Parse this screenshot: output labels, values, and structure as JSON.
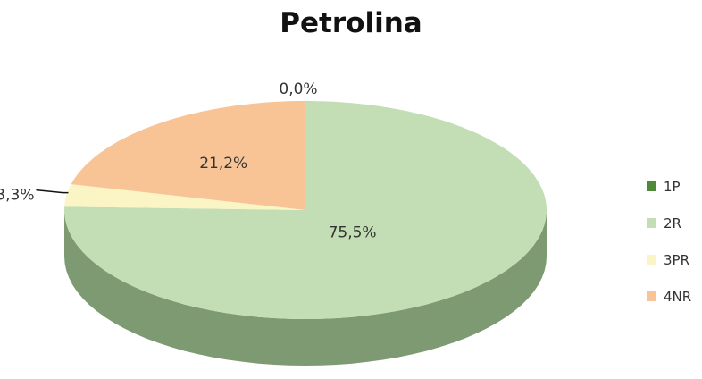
{
  "chart_data": {
    "type": "pie",
    "title": "Petrolina",
    "categories": [
      "1P",
      "2R",
      "3PR",
      "4NR"
    ],
    "values": [
      0.0,
      75.5,
      3.3,
      21.2
    ],
    "data_labels": [
      "0,0%",
      "75,5%",
      "3,3%",
      "21,2%"
    ],
    "colors": [
      "#4f8a3a",
      "#c3deb4",
      "#fbf4c4",
      "#f8c495"
    ],
    "side_colors": [
      "#3a6a2a",
      "#7e9a72",
      "#c9c39a",
      "#c89a70"
    ],
    "legend_position": "right",
    "style": "3d"
  }
}
